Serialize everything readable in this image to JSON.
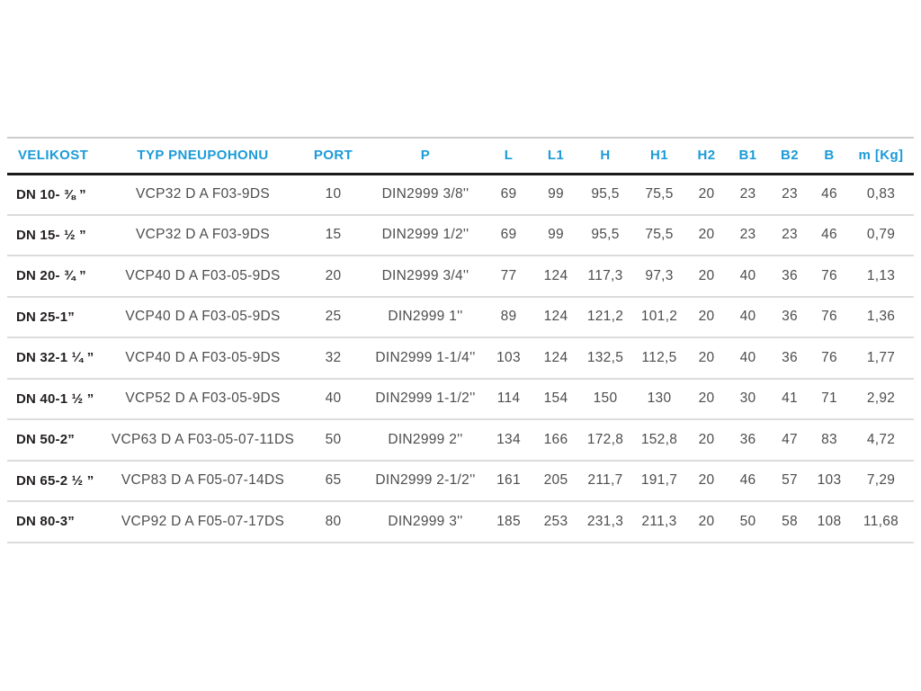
{
  "table": {
    "name": "pneumatic-actuator-dimensions",
    "columns": [
      {
        "key": "velikost",
        "label": "VELIKOST"
      },
      {
        "key": "typ_pneupohonu",
        "label": "TYP PNEUPOHONU"
      },
      {
        "key": "port",
        "label": "PORT"
      },
      {
        "key": "p",
        "label": "P"
      },
      {
        "key": "l",
        "label": "L"
      },
      {
        "key": "l1",
        "label": "L1"
      },
      {
        "key": "h",
        "label": "H"
      },
      {
        "key": "h1",
        "label": "H1"
      },
      {
        "key": "h2",
        "label": "H2"
      },
      {
        "key": "b1",
        "label": "B1"
      },
      {
        "key": "b2",
        "label": "B2"
      },
      {
        "key": "b",
        "label": "B"
      },
      {
        "key": "m_kg",
        "label": "m [Kg]"
      }
    ],
    "rows": [
      [
        "DN 10- ⅜ ”",
        "VCP32 D A F03-9DS",
        "10",
        "DIN2999 3/8''",
        "69",
        "99",
        "95,5",
        "75,5",
        "20",
        "23",
        "23",
        "46",
        "0,83"
      ],
      [
        "DN 15- ½ ”",
        "VCP32 D A F03-9DS",
        "15",
        "DIN2999 1/2''",
        "69",
        "99",
        "95,5",
        "75,5",
        "20",
        "23",
        "23",
        "46",
        "0,79"
      ],
      [
        "DN 20- ¾ ”",
        "VCP40 D A F03-05-9DS",
        "20",
        "DIN2999 3/4''",
        "77",
        "124",
        "117,3",
        "97,3",
        "20",
        "40",
        "36",
        "76",
        "1,13"
      ],
      [
        "DN 25-1”",
        "VCP40 D A F03-05-9DS",
        "25",
        "DIN2999 1''",
        "89",
        "124",
        "121,2",
        "101,2",
        "20",
        "40",
        "36",
        "76",
        "1,36"
      ],
      [
        "DN 32-1 ¼ ”",
        "VCP40 D A F03-05-9DS",
        "32",
        "DIN2999 1-1/4''",
        "103",
        "124",
        "132,5",
        "112,5",
        "20",
        "40",
        "36",
        "76",
        "1,77"
      ],
      [
        "DN 40-1 ½ ”",
        "VCP52 D A F03-05-9DS",
        "40",
        "DIN2999 1-1/2''",
        "114",
        "154",
        "150",
        "130",
        "20",
        "30",
        "41",
        "71",
        "2,92"
      ],
      [
        "DN 50-2”",
        "VCP63 D A F03-05-07-11DS",
        "50",
        "DIN2999 2''",
        "134",
        "166",
        "172,8",
        "152,8",
        "20",
        "36",
        "47",
        "83",
        "4,72"
      ],
      [
        "DN 65-2 ½ ”",
        "VCP83 D A F05-07-14DS",
        "65",
        "DIN2999 2-1/2''",
        "161",
        "205",
        "211,7",
        "191,7",
        "20",
        "46",
        "57",
        "103",
        "7,29"
      ],
      [
        "DN 80-3”",
        "VCP92 D A F05-07-17DS",
        "80",
        "DIN2999 3''",
        "185",
        "253",
        "231,3",
        "211,3",
        "20",
        "50",
        "58",
        "108",
        "11,68"
      ]
    ]
  },
  "colors": {
    "header_text": "#1b9bd8",
    "header_rule": "#1a1a1a",
    "row_separator": "#dcdcdc",
    "first_column_text": "#231f20",
    "data_text": "#4d4d4d",
    "background": "#ffffff"
  }
}
